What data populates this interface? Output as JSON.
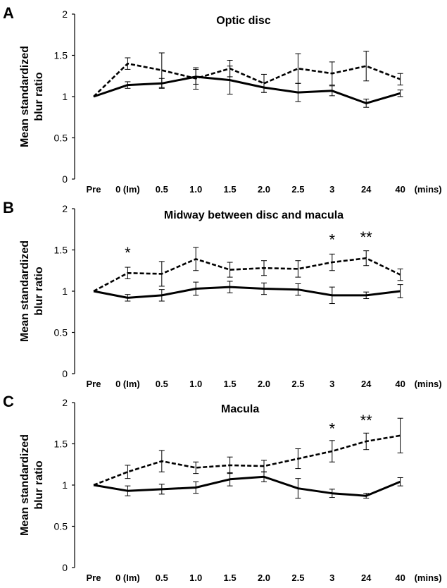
{
  "chart_data": [
    {
      "type": "line",
      "panel": "A",
      "title": "Optic disc",
      "ylabel": "Mean standardized blur ratio",
      "ylabel_lines": [
        "Mean standardized",
        "blur ratio"
      ],
      "categories": [
        "Pre",
        "0 (Im)",
        "0.5",
        "1.0",
        "1.5",
        "2.0",
        "2.5",
        "3",
        "24",
        "40"
      ],
      "x_unit": "(mins)",
      "ylim": [
        0,
        2
      ],
      "yticks": [
        0,
        0.5,
        1,
        1.5,
        2
      ],
      "ytick_labels": [
        "0",
        "0.5",
        "1",
        "1.5",
        "2"
      ],
      "grid": false,
      "series": [
        {
          "style": "solid",
          "values": [
            1.0,
            1.14,
            1.16,
            1.24,
            1.2,
            1.11,
            1.05,
            1.07,
            0.92,
            1.04
          ],
          "errors": [
            0,
            0.04,
            0.06,
            0.09,
            0.17,
            0.06,
            0.11,
            0.06,
            0.05,
            0.04
          ]
        },
        {
          "style": "dashed",
          "values": [
            1.0,
            1.4,
            1.32,
            1.22,
            1.34,
            1.16,
            1.34,
            1.28,
            1.37,
            1.21
          ],
          "errors": [
            0,
            0.07,
            0.21,
            0.13,
            0.1,
            0.11,
            0.18,
            0.14,
            0.18,
            0.07
          ]
        }
      ],
      "annotations": []
    },
    {
      "type": "line",
      "panel": "B",
      "title": "Midway between disc and  macula",
      "ylabel": "Mean standardized blur ratio",
      "ylabel_lines": [
        "Mean standardized",
        "blur ratio"
      ],
      "categories": [
        "Pre",
        "0 (Im)",
        "0.5",
        "1.0",
        "1.5",
        "2.0",
        "2.5",
        "3",
        "24",
        "40"
      ],
      "x_unit": "(mins)",
      "ylim": [
        0,
        2
      ],
      "yticks": [
        0,
        0.5,
        1,
        1.5,
        2
      ],
      "ytick_labels": [
        "0",
        "0.5",
        "1",
        "1.5",
        "2"
      ],
      "grid": false,
      "series": [
        {
          "style": "solid",
          "values": [
            1.0,
            0.92,
            0.95,
            1.03,
            1.05,
            1.03,
            1.02,
            0.95,
            0.95,
            1.0
          ],
          "errors": [
            0,
            0.04,
            0.07,
            0.08,
            0.07,
            0.07,
            0.07,
            0.1,
            0.04,
            0.08
          ]
        },
        {
          "style": "dashed",
          "values": [
            1.0,
            1.22,
            1.21,
            1.39,
            1.26,
            1.28,
            1.27,
            1.35,
            1.4,
            1.2
          ],
          "errors": [
            0,
            0.07,
            0.15,
            0.14,
            0.09,
            0.09,
            0.1,
            0.1,
            0.09,
            0.07
          ]
        }
      ],
      "annotations": [
        {
          "text": "*",
          "category": "0 (Im)",
          "y": 1.4
        },
        {
          "text": "*",
          "category": "3",
          "y": 1.56
        },
        {
          "text": "**",
          "category": "24",
          "y": 1.59
        }
      ]
    },
    {
      "type": "line",
      "panel": "C",
      "title": "Macula",
      "ylabel": "Mean standardized blur ratio",
      "ylabel_lines": [
        "Mean standardized",
        "blur ratio"
      ],
      "categories": [
        "Pre",
        "0 (Im)",
        "0.5",
        "1.0",
        "1.5",
        "2.0",
        "2.5",
        "3",
        "24",
        "40"
      ],
      "x_unit": "(mins)",
      "ylim": [
        0,
        2
      ],
      "yticks": [
        0,
        0.5,
        1,
        1.5,
        2
      ],
      "ytick_labels": [
        "0",
        "0.5",
        "1",
        "1.5",
        "2"
      ],
      "grid": false,
      "series": [
        {
          "style": "solid",
          "values": [
            1.0,
            0.93,
            0.95,
            0.97,
            1.07,
            1.1,
            0.96,
            0.9,
            0.87,
            1.04
          ],
          "errors": [
            0,
            0.06,
            0.06,
            0.07,
            0.08,
            0.06,
            0.12,
            0.05,
            0.03,
            0.05
          ]
        },
        {
          "style": "dashed",
          "values": [
            1.0,
            1.16,
            1.29,
            1.21,
            1.24,
            1.23,
            1.32,
            1.41,
            1.53,
            1.6
          ],
          "errors": [
            0,
            0.08,
            0.13,
            0.07,
            0.1,
            0.07,
            0.12,
            0.13,
            0.1,
            0.21
          ]
        }
      ],
      "annotations": [
        {
          "text": "*",
          "category": "3",
          "y": 1.62
        },
        {
          "text": "**",
          "category": "24",
          "y": 1.72
        }
      ]
    }
  ]
}
